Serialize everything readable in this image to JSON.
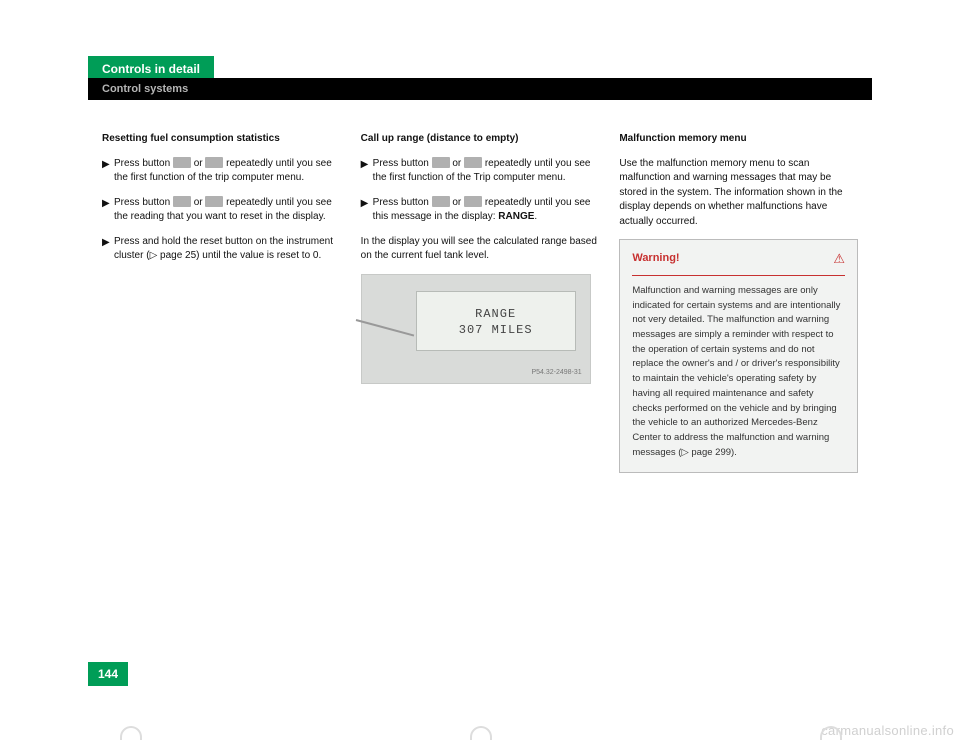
{
  "header": {
    "chapter": "Controls in detail",
    "section": "Control systems"
  },
  "col1": {
    "title": "Resetting fuel consumption statistics",
    "steps": [
      "Press button ▢ or ▢ repeatedly until you see the first function of the trip computer menu.",
      "Press button ▢ or ▢ repeatedly until you see the reading that you want to reset in the display.",
      "Press and hold the reset button on the instrument cluster (▷ page 25) until the value is reset to 0."
    ]
  },
  "col2": {
    "title": "Call up range (distance to empty)",
    "steps": [
      "Press button ▢ or ▢ repeatedly until you see the first function of the Trip computer menu.",
      "Press button ▢ or ▢ repeatedly until you see this message in the display: RANGE."
    ],
    "para": "In the display you will see the calculated range based on the current fuel tank level.",
    "display": {
      "line1": "RANGE",
      "line2": "307 MILES",
      "partno": "P54.32-2498-31",
      "background_color": "#d9dbd9",
      "screen_color": "#eef1ed"
    }
  },
  "col3": {
    "title": "Malfunction memory menu",
    "intro": "Use the malfunction memory menu to scan malfunction and warning messages that may be stored in the system. The information shown in the display depends on whether malfunctions have actually occurred.",
    "warning": {
      "title": "Warning!",
      "body": "Malfunction and warning messages are only indicated for certain systems and are intentionally not very detailed. The malfunction and warning messages are simply a reminder with respect to the operation of certain systems and do not replace the owner's and / or driver's responsibility to maintain the vehicle's operating safety by having all required maintenance and safety checks performed on the vehicle and by bringing the vehicle to an authorized Mercedes-Benz Center to address the malfunction and warning messages (▷ page 299).",
      "accent_color": "#c73030",
      "bg_color": "#f2f3f2"
    }
  },
  "page_number": "144",
  "watermark": "carmanualsonline.info",
  "colors": {
    "brand_green": "#009d57",
    "header_black": "#000000"
  }
}
